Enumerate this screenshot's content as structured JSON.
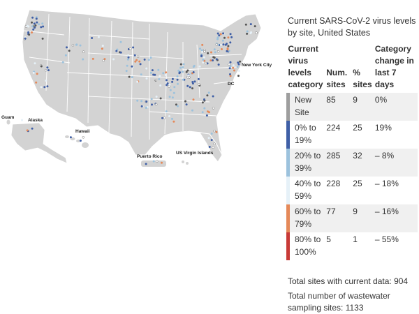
{
  "map": {
    "labels": {
      "nyc": "New York City",
      "dc": "DC",
      "guam": "Guam",
      "alaska": "Alaska",
      "hawaii": "Hawaii",
      "puerto_rico": "Puerto Rico",
      "usvi": "US Virgin Islands"
    },
    "colors": {
      "land": "#d3d3d3",
      "border": "#ffffff"
    }
  },
  "panel": {
    "title": "Current SARS-CoV-2 virus levels by site, United States",
    "headers": {
      "category": "Current virus levels category",
      "num_sites": "Num. sites",
      "pct_sites": "% sites",
      "change": "Category change in last 7 days"
    },
    "rows": [
      {
        "category": "New Site",
        "num": "85",
        "pct": "9",
        "change": "0%",
        "color": "#ffffff"
      },
      {
        "category": "0% to 19%",
        "num": "224",
        "pct": "25",
        "change": "19%",
        "color": "#3f5fa6"
      },
      {
        "category": "20% to 39%",
        "num": "285",
        "pct": "32",
        "change": "– 8%",
        "color": "#9cc2dd"
      },
      {
        "category": "40% to 59%",
        "num": "228",
        "pct": "25",
        "change": "– 18%",
        "color": "#e6f1f8"
      },
      {
        "category": "60% to 79%",
        "num": "77",
        "pct": "9",
        "change": "– 16%",
        "color": "#e58959"
      },
      {
        "category": "80% to 100%",
        "num": "5",
        "pct": "1",
        "change": "– 55%",
        "color": "#c83a37"
      }
    ],
    "total_current": "Total sites with current data: 904",
    "total_sites": "Total number of wastewater sampling sites: 1133"
  }
}
